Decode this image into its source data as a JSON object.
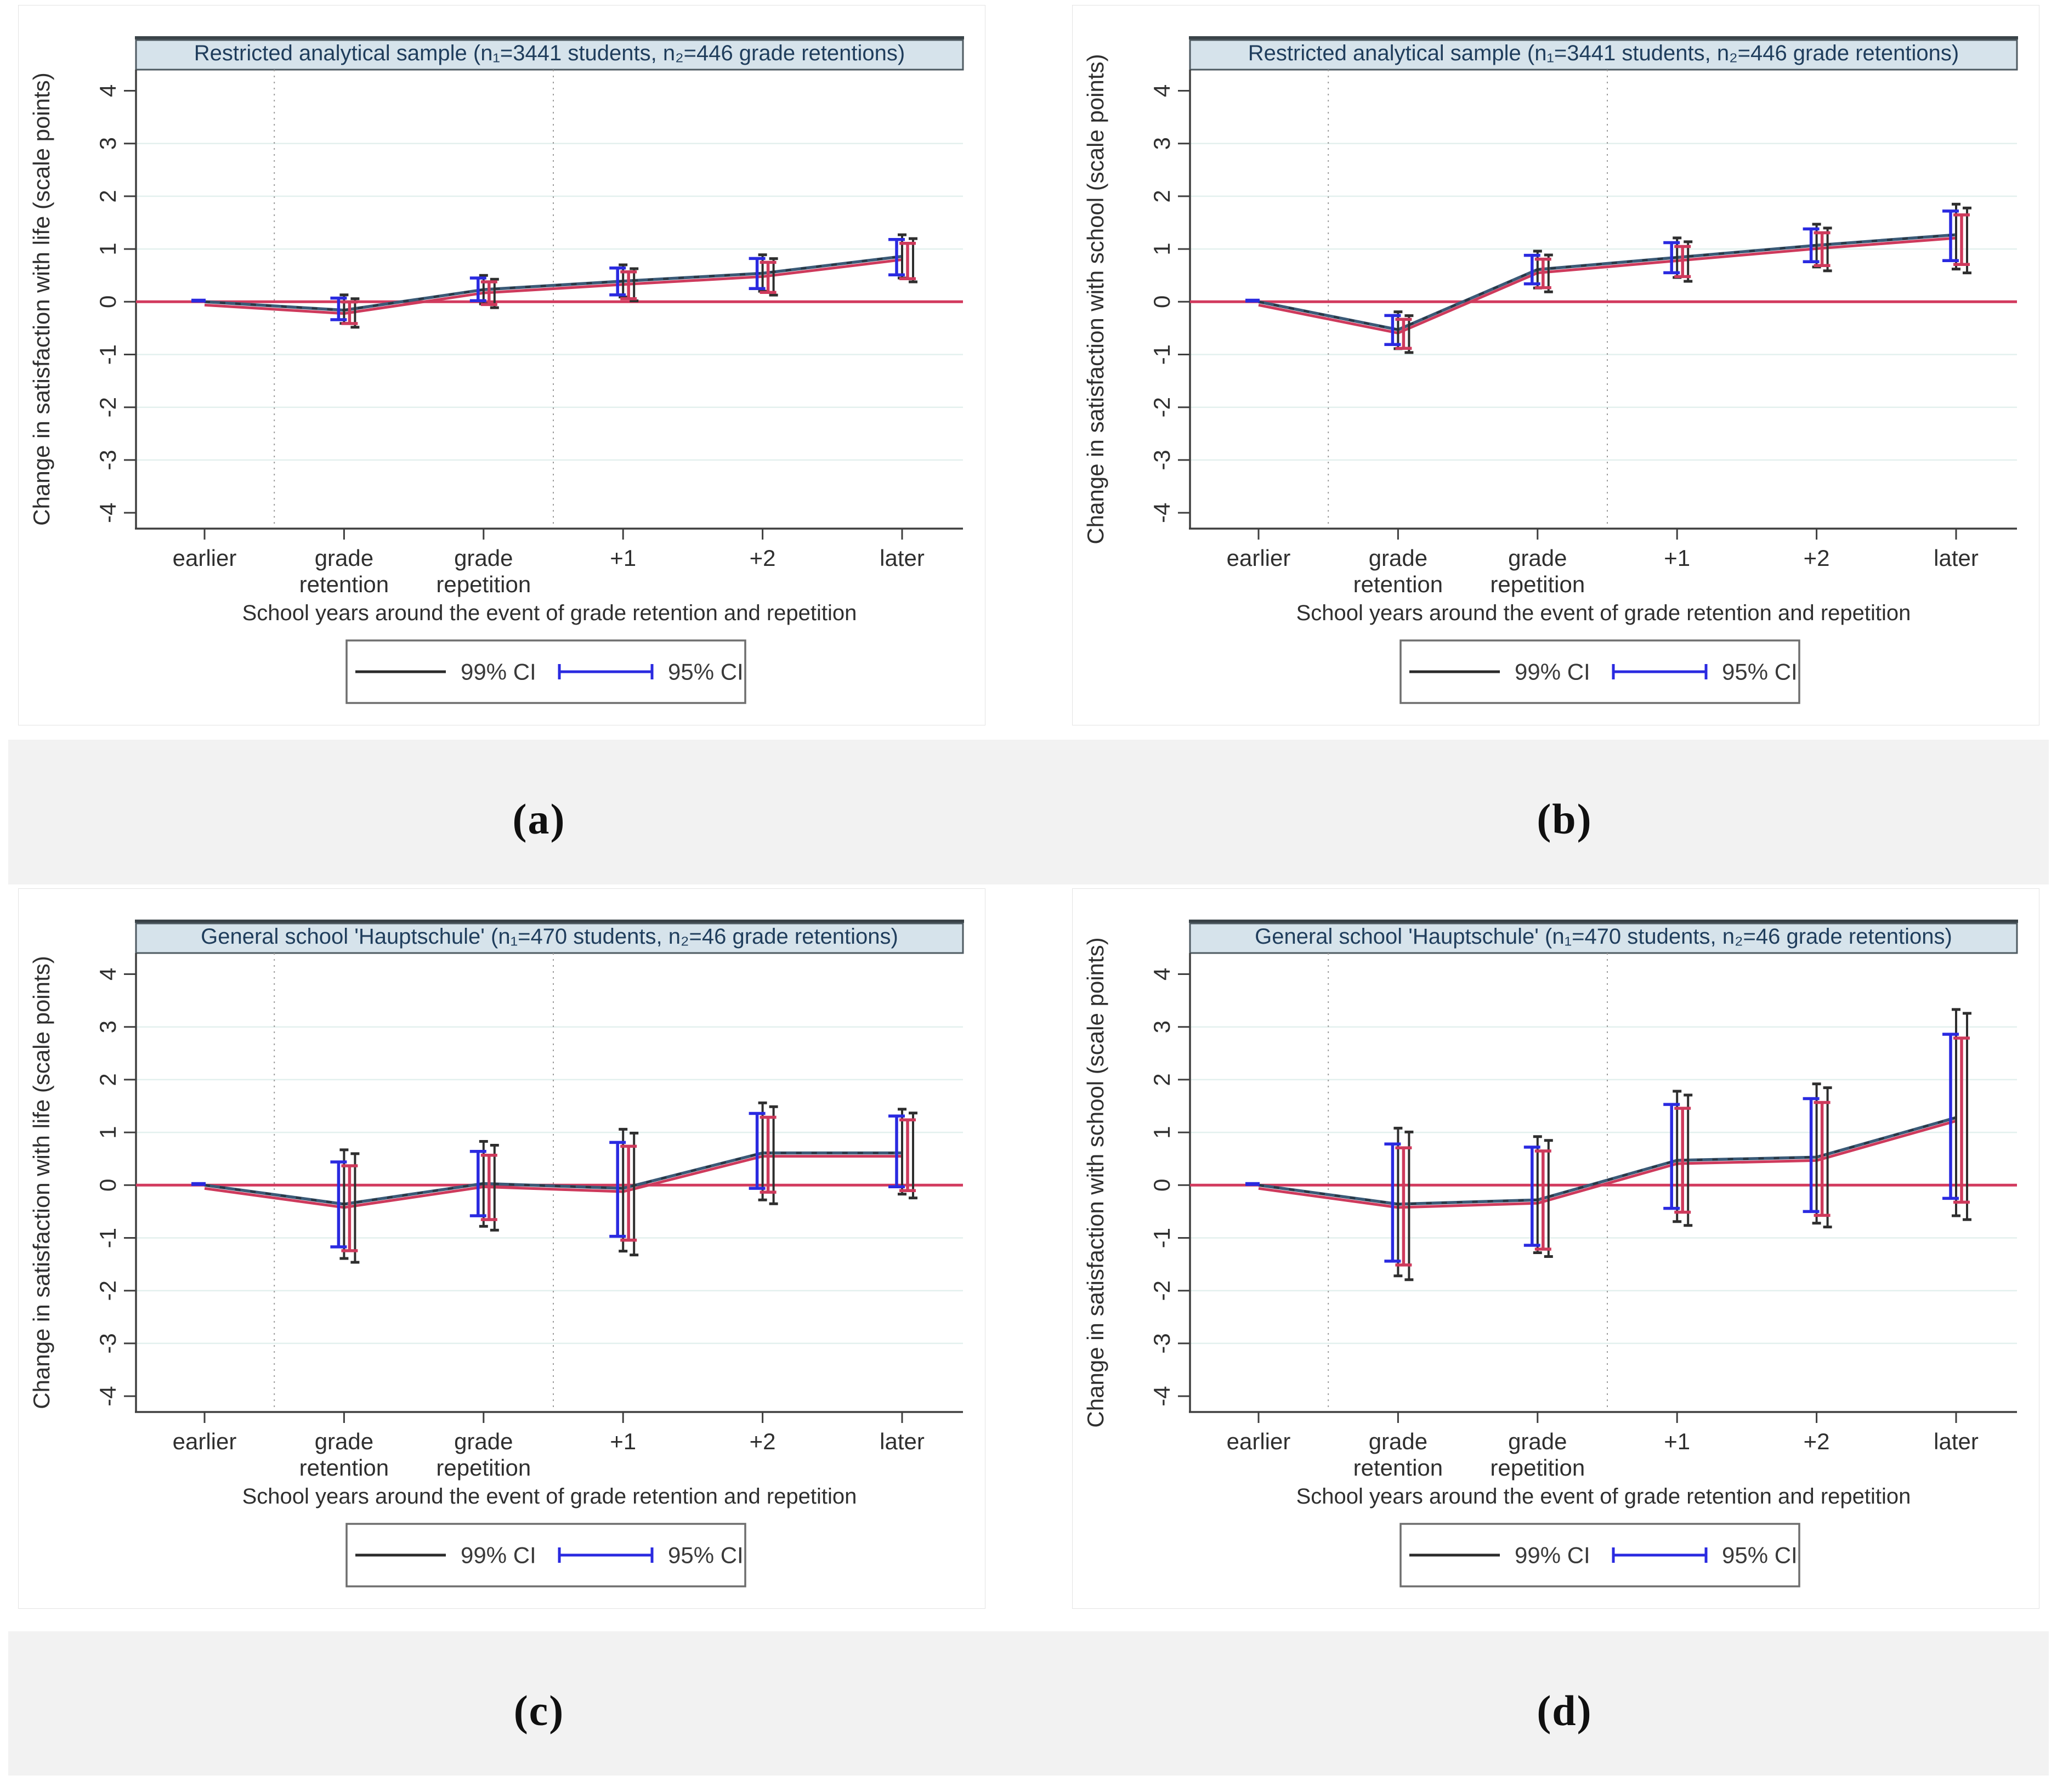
{
  "figure": {
    "captions": {
      "a": "(a)",
      "b": "(b)",
      "c": "(c)",
      "d": "(d)"
    }
  },
  "style": {
    "accent_zero_line": "#d23a5e",
    "series_estimate": "#3b5a77",
    "series_estimate_dash": "#242c34",
    "series_alt": "#ce3a5c",
    "ci95_color": "#2a2ae0",
    "ci99_color": "#2e2e2e",
    "grid_color": "#e3f0ee",
    "vline_color": "#9b9b9b",
    "axis_color": "#3f3f3f",
    "tick_text_color": "#2f2f2f",
    "title_bg": "#d6e3eb",
    "title_border": "#4e5a61",
    "title_top_edge": "#3a4348",
    "title_text": "#1f3d5c",
    "band_bg": "#f2f2f2",
    "legend_border": "#6e6e6e",
    "legend_text_color": "#3a3a3a"
  },
  "chart_data": [
    {
      "id": "a",
      "type": "line",
      "title": "Restricted analytical sample (n₁=3441 students, n₂=446 grade retentions)",
      "ylabel": "Change in satisfaction with life (scale points)",
      "xlabel": "School years around the event of grade retention and repetition",
      "categories": [
        "earlier",
        "grade\nretention",
        "grade\nrepetition",
        "+1",
        "+2",
        "later"
      ],
      "ylim": [
        -4.3,
        4.4
      ],
      "yticks": [
        -4,
        -3,
        -2,
        -1,
        0,
        1,
        2,
        3,
        4
      ],
      "gridlines": [
        -3,
        -2,
        -1,
        1,
        2,
        3
      ],
      "ref_line_y": 0,
      "event_window_dividers_x": [
        0.5,
        2.5
      ],
      "grid": true,
      "legend_position": "bottom",
      "series": [
        {
          "name": "estimate",
          "values": [
            0,
            -0.16,
            0.23,
            0.39,
            0.54,
            0.86
          ]
        }
      ],
      "ci95": [
        [
          0,
          0
        ],
        [
          -0.34,
          0.07
        ],
        [
          0.02,
          0.45
        ],
        [
          0.13,
          0.64
        ],
        [
          0.25,
          0.82
        ],
        [
          0.51,
          1.18
        ]
      ],
      "ci99": [
        [
          0,
          0
        ],
        [
          -0.41,
          0.13
        ],
        [
          -0.04,
          0.5
        ],
        [
          0.09,
          0.7
        ],
        [
          0.2,
          0.89
        ],
        [
          0.45,
          1.27
        ]
      ],
      "legend": [
        {
          "label": "99% CI",
          "style": "line"
        },
        {
          "label": "95% CI",
          "style": "capped-line"
        }
      ]
    },
    {
      "id": "b",
      "type": "line",
      "title": "Restricted analytical sample (n₁=3441 students, n₂=446 grade retentions)",
      "ylabel": "Change in satisfaction with school (scale points)",
      "xlabel": "School years around the event of grade retention and repetition",
      "categories": [
        "earlier",
        "grade\nretention",
        "grade\nrepetition",
        "+1",
        "+2",
        "later"
      ],
      "ylim": [
        -4.3,
        4.4
      ],
      "yticks": [
        -4,
        -3,
        -2,
        -1,
        0,
        1,
        2,
        3,
        4
      ],
      "gridlines": [
        -3,
        -2,
        -1,
        1,
        2,
        3
      ],
      "ref_line_y": 0,
      "event_window_dividers_x": [
        0.5,
        2.5
      ],
      "grid": true,
      "legend_position": "bottom",
      "series": [
        {
          "name": "estimate",
          "values": [
            0,
            -0.53,
            0.61,
            0.84,
            1.07,
            1.27
          ]
        }
      ],
      "ci95": [
        [
          0,
          0
        ],
        [
          -0.81,
          -0.26
        ],
        [
          0.34,
          0.88
        ],
        [
          0.55,
          1.12
        ],
        [
          0.76,
          1.38
        ],
        [
          0.78,
          1.72
        ]
      ],
      "ci99": [
        [
          0,
          0
        ],
        [
          -0.89,
          -0.19
        ],
        [
          0.26,
          0.96
        ],
        [
          0.46,
          1.21
        ],
        [
          0.66,
          1.47
        ],
        [
          0.62,
          1.85
        ]
      ],
      "legend": [
        {
          "label": "99% CI",
          "style": "line"
        },
        {
          "label": "95% CI",
          "style": "capped-line"
        }
      ]
    },
    {
      "id": "c",
      "type": "line",
      "title": "General school 'Hauptschule' (n₁=470 students, n₂=46 grade retentions)",
      "ylabel": "Change in satisfaction with life (scale points)",
      "xlabel": "School years around the event of grade retention and repetition",
      "categories": [
        "earlier",
        "grade\nretention",
        "grade\nrepetition",
        "+1",
        "+2",
        "later"
      ],
      "ylim": [
        -4.3,
        4.4
      ],
      "yticks": [
        -4,
        -3,
        -2,
        -1,
        0,
        1,
        2,
        3,
        4
      ],
      "gridlines": [
        -3,
        -2,
        -1,
        1,
        2,
        3
      ],
      "ref_line_y": 0,
      "event_window_dividers_x": [
        0.5,
        2.5
      ],
      "grid": true,
      "legend_position": "bottom",
      "series": [
        {
          "name": "estimate",
          "values": [
            0,
            -0.36,
            0.03,
            -0.06,
            0.61,
            0.61
          ]
        }
      ],
      "ci95": [
        [
          0,
          0
        ],
        [
          -1.17,
          0.44
        ],
        [
          -0.58,
          0.64
        ],
        [
          -0.97,
          0.81
        ],
        [
          -0.06,
          1.36
        ],
        [
          -0.03,
          1.31
        ]
      ],
      "ci99": [
        [
          0,
          0
        ],
        [
          -1.39,
          0.67
        ],
        [
          -0.78,
          0.83
        ],
        [
          -1.25,
          1.06
        ],
        [
          -0.28,
          1.56
        ],
        [
          -0.17,
          1.44
        ]
      ],
      "legend": [
        {
          "label": "99% CI",
          "style": "line"
        },
        {
          "label": "95% CI",
          "style": "capped-line"
        }
      ]
    },
    {
      "id": "d",
      "type": "line",
      "title": "General school 'Hauptschule' (n₁=470 students, n₂=46 grade retentions)",
      "ylabel": "Change in satisfaction with school (scale points)",
      "xlabel": "School years around the event of grade retention and repetition",
      "categories": [
        "earlier",
        "grade\nretention",
        "grade\nrepetition",
        "+1",
        "+2",
        "later"
      ],
      "ylim": [
        -4.3,
        4.4
      ],
      "yticks": [
        -4,
        -3,
        -2,
        -1,
        0,
        1,
        2,
        3,
        4
      ],
      "gridlines": [
        -3,
        -2,
        -1,
        1,
        2,
        3
      ],
      "ref_line_y": 0,
      "event_window_dividers_x": [
        0.5,
        2.5
      ],
      "grid": true,
      "legend_position": "bottom",
      "series": [
        {
          "name": "estimate",
          "values": [
            0,
            -0.36,
            -0.28,
            0.47,
            0.53,
            1.28
          ]
        }
      ],
      "ci95": [
        [
          0,
          0
        ],
        [
          -1.44,
          0.78
        ],
        [
          -1.14,
          0.72
        ],
        [
          -0.44,
          1.53
        ],
        [
          -0.5,
          1.64
        ],
        [
          -0.25,
          2.86
        ]
      ],
      "ci99": [
        [
          0,
          0
        ],
        [
          -1.72,
          1.08
        ],
        [
          -1.28,
          0.92
        ],
        [
          -0.69,
          1.78
        ],
        [
          -0.72,
          1.92
        ],
        [
          -0.58,
          3.33
        ]
      ],
      "legend": [
        {
          "label": "99% CI",
          "style": "line"
        },
        {
          "label": "95% CI",
          "style": "capped-line"
        }
      ]
    }
  ]
}
